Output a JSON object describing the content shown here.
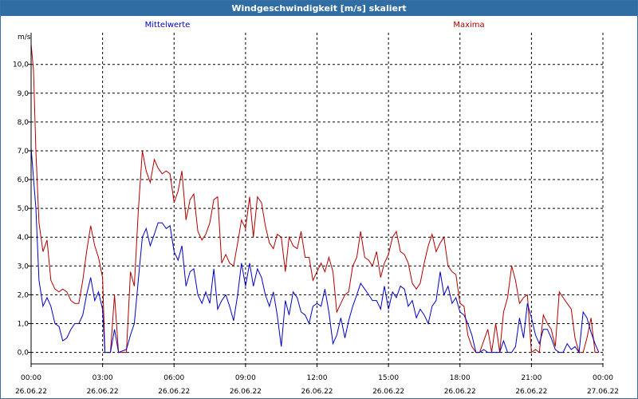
{
  "window": {
    "title": "Windgeschwindigkeit [m/s] skaliert"
  },
  "chart_data": {
    "type": "line",
    "title": "Windgeschwindigkeit [m/s] skaliert",
    "ylabel": "m/s",
    "xlabel": "",
    "ylim": [
      -0.4,
      11.1
    ],
    "xlim": [
      0,
      24
    ],
    "grid": true,
    "y_ticks": [
      "0,0",
      "1,0",
      "2,0",
      "3,0",
      "4,0",
      "5,0",
      "6,0",
      "7,0",
      "8,0",
      "9,0",
      "10,0"
    ],
    "x_ticks": [
      {
        "time": "00:00",
        "date": "26.06.22"
      },
      {
        "time": "03:00",
        "date": "26.06.22"
      },
      {
        "time": "06:00",
        "date": "26.06.22"
      },
      {
        "time": "09:00",
        "date": "26.06.22"
      },
      {
        "time": "12:00",
        "date": "26.06.22"
      },
      {
        "time": "15:00",
        "date": "26.06.22"
      },
      {
        "time": "18:00",
        "date": "26.06.22"
      },
      {
        "time": "21:00",
        "date": "26.06.22"
      },
      {
        "time": "00:00",
        "date": "27.06.22"
      }
    ],
    "series": [
      {
        "name": "Mittelwerte",
        "color": "#0000c0",
        "points": [
          [
            0.0,
            7.1
          ],
          [
            0.2,
            5.0
          ],
          [
            0.33,
            2.5
          ],
          [
            0.5,
            1.6
          ],
          [
            0.67,
            1.9
          ],
          [
            0.83,
            1.6
          ],
          [
            1.0,
            1.0
          ],
          [
            1.17,
            0.9
          ],
          [
            1.33,
            0.4
          ],
          [
            1.5,
            0.5
          ],
          [
            1.67,
            0.8
          ],
          [
            1.83,
            1.0
          ],
          [
            2.0,
            1.0
          ],
          [
            2.17,
            1.3
          ],
          [
            2.33,
            2.0
          ],
          [
            2.5,
            2.6
          ],
          [
            2.67,
            1.8
          ],
          [
            2.83,
            2.1
          ],
          [
            3.0,
            1.5
          ],
          [
            3.1,
            0.0
          ],
          [
            3.33,
            0.0
          ],
          [
            3.5,
            0.8
          ],
          [
            3.67,
            0.0
          ],
          [
            4.0,
            0.1
          ],
          [
            4.17,
            0.6
          ],
          [
            4.33,
            1.0
          ],
          [
            4.5,
            2.5
          ],
          [
            4.67,
            4.0
          ],
          [
            4.83,
            4.3
          ],
          [
            5.0,
            3.7
          ],
          [
            5.17,
            4.1
          ],
          [
            5.33,
            4.5
          ],
          [
            5.5,
            4.5
          ],
          [
            5.67,
            4.3
          ],
          [
            5.83,
            4.4
          ],
          [
            6.0,
            3.5
          ],
          [
            6.17,
            3.2
          ],
          [
            6.33,
            3.7
          ],
          [
            6.5,
            2.3
          ],
          [
            6.67,
            2.8
          ],
          [
            6.83,
            2.9
          ],
          [
            7.0,
            2.0
          ],
          [
            7.17,
            1.7
          ],
          [
            7.33,
            2.1
          ],
          [
            7.5,
            1.7
          ],
          [
            7.67,
            2.9
          ],
          [
            7.83,
            1.5
          ],
          [
            8.0,
            1.8
          ],
          [
            8.17,
            2.0
          ],
          [
            8.33,
            1.6
          ],
          [
            8.5,
            1.1
          ],
          [
            8.67,
            2.0
          ],
          [
            8.83,
            3.1
          ],
          [
            9.0,
            2.3
          ],
          [
            9.17,
            3.1
          ],
          [
            9.33,
            2.3
          ],
          [
            9.5,
            2.9
          ],
          [
            9.67,
            2.6
          ],
          [
            9.83,
            2.0
          ],
          [
            10.0,
            1.6
          ],
          [
            10.17,
            2.1
          ],
          [
            10.33,
            1.3
          ],
          [
            10.5,
            0.2
          ],
          [
            10.67,
            1.8
          ],
          [
            10.83,
            1.3
          ],
          [
            11.0,
            2.1
          ],
          [
            11.17,
            1.9
          ],
          [
            11.33,
            1.4
          ],
          [
            11.5,
            1.3
          ],
          [
            11.67,
            1.0
          ],
          [
            11.83,
            1.6
          ],
          [
            12.0,
            1.7
          ],
          [
            12.17,
            1.6
          ],
          [
            12.33,
            2.2
          ],
          [
            12.5,
            1.4
          ],
          [
            12.67,
            0.3
          ],
          [
            12.83,
            0.6
          ],
          [
            13.0,
            1.2
          ],
          [
            13.17,
            0.5
          ],
          [
            13.33,
            1.1
          ],
          [
            13.5,
            1.6
          ],
          [
            13.67,
            2.0
          ],
          [
            13.83,
            2.4
          ],
          [
            14.0,
            2.2
          ],
          [
            14.17,
            2.0
          ],
          [
            14.33,
            1.8
          ],
          [
            14.5,
            1.8
          ],
          [
            14.67,
            1.5
          ],
          [
            14.83,
            2.3
          ],
          [
            15.0,
            1.5
          ],
          [
            15.17,
            2.1
          ],
          [
            15.33,
            1.9
          ],
          [
            15.5,
            2.3
          ],
          [
            15.67,
            2.2
          ],
          [
            15.83,
            1.6
          ],
          [
            16.0,
            1.8
          ],
          [
            16.17,
            1.2
          ],
          [
            16.33,
            1.5
          ],
          [
            16.5,
            1.3
          ],
          [
            16.67,
            1.0
          ],
          [
            16.83,
            1.6
          ],
          [
            17.0,
            1.8
          ],
          [
            17.17,
            2.8
          ],
          [
            17.33,
            2.0
          ],
          [
            17.5,
            2.3
          ],
          [
            17.67,
            1.7
          ],
          [
            17.83,
            1.9
          ],
          [
            18.0,
            1.4
          ],
          [
            18.17,
            1.3
          ],
          [
            18.33,
            1.0
          ],
          [
            18.5,
            0.6
          ],
          [
            18.67,
            0.0
          ],
          [
            18.83,
            0.0
          ],
          [
            19.0,
            0.1
          ],
          [
            19.17,
            0.0
          ],
          [
            19.33,
            0.0
          ],
          [
            19.5,
            0.0
          ],
          [
            19.67,
            0.0
          ],
          [
            19.83,
            0.4
          ],
          [
            20.0,
            0.0
          ],
          [
            20.17,
            0.0
          ],
          [
            20.33,
            0.2
          ],
          [
            20.5,
            1.2
          ],
          [
            20.67,
            0.5
          ],
          [
            20.83,
            1.7
          ],
          [
            21.0,
            1.2
          ],
          [
            21.17,
            0.6
          ],
          [
            21.33,
            0.3
          ],
          [
            21.5,
            0.8
          ],
          [
            21.67,
            0.8
          ],
          [
            21.83,
            0.5
          ],
          [
            22.0,
            0.1
          ],
          [
            22.17,
            0.0
          ],
          [
            22.33,
            0.0
          ],
          [
            22.5,
            0.3
          ],
          [
            22.67,
            0.1
          ],
          [
            22.83,
            0.2
          ],
          [
            23.0,
            0.0
          ],
          [
            23.17,
            1.4
          ],
          [
            23.33,
            1.2
          ],
          [
            23.5,
            0.7
          ],
          [
            23.67,
            0.3
          ],
          [
            23.83,
            0.0
          ]
        ]
      },
      {
        "name": "Maxima",
        "color": "#b00000",
        "points": [
          [
            0.0,
            10.7
          ],
          [
            0.1,
            9.8
          ],
          [
            0.2,
            7.0
          ],
          [
            0.33,
            4.5
          ],
          [
            0.5,
            3.5
          ],
          [
            0.67,
            3.9
          ],
          [
            0.83,
            2.5
          ],
          [
            1.0,
            2.2
          ],
          [
            1.17,
            2.1
          ],
          [
            1.33,
            2.2
          ],
          [
            1.5,
            2.1
          ],
          [
            1.67,
            1.8
          ],
          [
            1.83,
            1.7
          ],
          [
            2.0,
            1.7
          ],
          [
            2.17,
            2.5
          ],
          [
            2.33,
            3.5
          ],
          [
            2.5,
            4.4
          ],
          [
            2.67,
            3.7
          ],
          [
            2.83,
            3.3
          ],
          [
            3.0,
            2.6
          ],
          [
            3.1,
            0.0
          ],
          [
            3.33,
            0.0
          ],
          [
            3.5,
            2.0
          ],
          [
            3.67,
            0.0
          ],
          [
            4.0,
            0.0
          ],
          [
            4.17,
            2.8
          ],
          [
            4.33,
            2.3
          ],
          [
            4.5,
            4.9
          ],
          [
            4.67,
            7.0
          ],
          [
            4.83,
            6.3
          ],
          [
            5.0,
            5.9
          ],
          [
            5.17,
            6.7
          ],
          [
            5.33,
            6.4
          ],
          [
            5.5,
            6.2
          ],
          [
            5.67,
            6.3
          ],
          [
            5.83,
            6.2
          ],
          [
            6.0,
            5.2
          ],
          [
            6.17,
            5.6
          ],
          [
            6.33,
            6.3
          ],
          [
            6.5,
            4.6
          ],
          [
            6.67,
            5.3
          ],
          [
            6.83,
            5.5
          ],
          [
            7.0,
            4.2
          ],
          [
            7.17,
            3.9
          ],
          [
            7.33,
            4.1
          ],
          [
            7.5,
            4.5
          ],
          [
            7.67,
            5.3
          ],
          [
            7.83,
            5.4
          ],
          [
            8.0,
            3.1
          ],
          [
            8.17,
            3.4
          ],
          [
            8.33,
            3.1
          ],
          [
            8.5,
            3.0
          ],
          [
            8.67,
            3.8
          ],
          [
            8.83,
            4.6
          ],
          [
            9.0,
            4.3
          ],
          [
            9.17,
            5.4
          ],
          [
            9.33,
            4.0
          ],
          [
            9.5,
            5.4
          ],
          [
            9.67,
            5.2
          ],
          [
            9.83,
            4.4
          ],
          [
            10.0,
            3.8
          ],
          [
            10.17,
            3.6
          ],
          [
            10.33,
            4.1
          ],
          [
            10.5,
            4.0
          ],
          [
            10.67,
            2.8
          ],
          [
            10.83,
            4.0
          ],
          [
            11.0,
            3.7
          ],
          [
            11.17,
            3.6
          ],
          [
            11.33,
            4.2
          ],
          [
            11.5,
            3.3
          ],
          [
            11.67,
            3.3
          ],
          [
            11.83,
            2.5
          ],
          [
            12.0,
            2.8
          ],
          [
            12.17,
            3.1
          ],
          [
            12.33,
            2.8
          ],
          [
            12.5,
            3.3
          ],
          [
            12.67,
            2.8
          ],
          [
            12.83,
            1.4
          ],
          [
            13.0,
            1.7
          ],
          [
            13.17,
            2.0
          ],
          [
            13.33,
            2.1
          ],
          [
            13.5,
            3.0
          ],
          [
            13.67,
            3.3
          ],
          [
            13.83,
            4.2
          ],
          [
            14.0,
            3.3
          ],
          [
            14.17,
            3.2
          ],
          [
            14.33,
            3.0
          ],
          [
            14.5,
            3.5
          ],
          [
            14.67,
            2.6
          ],
          [
            14.83,
            3.1
          ],
          [
            15.0,
            3.4
          ],
          [
            15.17,
            4.0
          ],
          [
            15.33,
            4.2
          ],
          [
            15.5,
            3.5
          ],
          [
            15.67,
            3.4
          ],
          [
            15.83,
            3.1
          ],
          [
            16.0,
            2.4
          ],
          [
            16.17,
            2.2
          ],
          [
            16.33,
            2.4
          ],
          [
            16.5,
            3.1
          ],
          [
            16.67,
            3.7
          ],
          [
            16.83,
            4.1
          ],
          [
            17.0,
            3.5
          ],
          [
            17.17,
            3.8
          ],
          [
            17.33,
            4.0
          ],
          [
            17.5,
            3.0
          ],
          [
            17.67,
            2.8
          ],
          [
            17.83,
            2.7
          ],
          [
            18.0,
            1.7
          ],
          [
            18.17,
            1.6
          ],
          [
            18.33,
            0.6
          ],
          [
            18.5,
            0.2
          ],
          [
            18.67,
            0.0
          ],
          [
            18.83,
            0.0
          ],
          [
            19.0,
            0.4
          ],
          [
            19.17,
            0.8
          ],
          [
            19.33,
            0.0
          ],
          [
            19.5,
            1.0
          ],
          [
            19.67,
            0.0
          ],
          [
            19.83,
            1.4
          ],
          [
            20.0,
            1.9
          ],
          [
            20.17,
            3.0
          ],
          [
            20.33,
            2.5
          ],
          [
            20.5,
            1.7
          ],
          [
            20.67,
            1.9
          ],
          [
            20.83,
            2.0
          ],
          [
            21.0,
            0.0
          ],
          [
            21.17,
            0.1
          ],
          [
            21.33,
            0.0
          ],
          [
            21.5,
            1.3
          ],
          [
            21.67,
            1.0
          ],
          [
            21.83,
            0.8
          ],
          [
            22.0,
            0.2
          ],
          [
            22.17,
            2.1
          ],
          [
            22.33,
            1.9
          ],
          [
            22.5,
            1.7
          ],
          [
            22.67,
            1.5
          ],
          [
            22.83,
            0.5
          ],
          [
            23.0,
            0.0
          ],
          [
            23.17,
            0.0
          ],
          [
            23.33,
            0.5
          ],
          [
            23.5,
            1.2
          ],
          [
            23.67,
            0.0
          ],
          [
            23.83,
            0.0
          ]
        ]
      }
    ]
  }
}
